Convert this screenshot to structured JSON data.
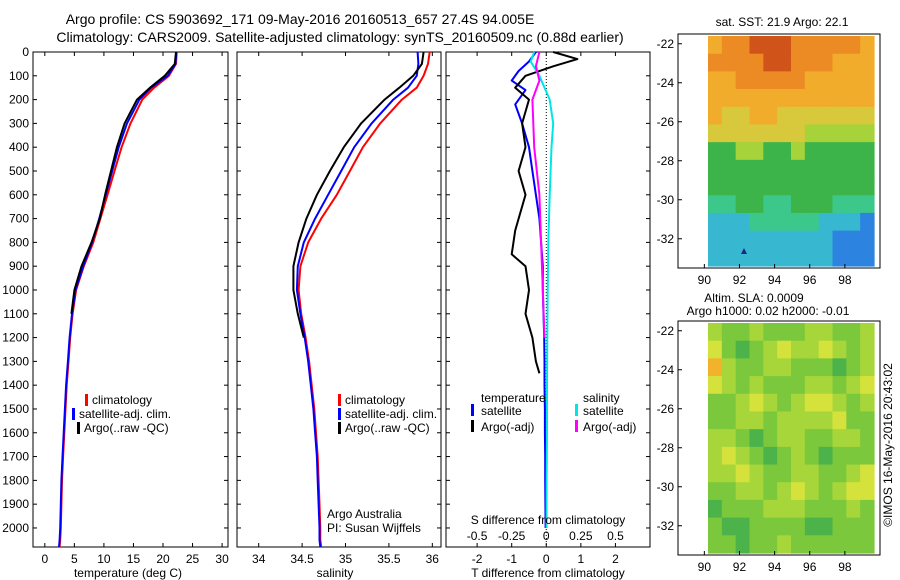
{
  "header": {
    "title_line1": "Argo profile: CS 5903692_171 09-May-2016 20160513_657 27.4S 94.005E",
    "title_line2": "Climatology: CARS2009. Satellite-adjusted climatology: synTS_20160509.nc (0.88d earlier)"
  },
  "colors": {
    "climatology": "#ff0000",
    "satellite": "#0000ff",
    "argo": "#000000",
    "salinity_satellite": "#00e6e6",
    "salinity_argo": "#ff00ff"
  },
  "chart_data": [
    {
      "id": "temperature",
      "type": "line",
      "xlabel": "temperature (deg C)",
      "ylabel": "",
      "xlim": [
        -2,
        31
      ],
      "ylim": [
        2080,
        0
      ],
      "x_ticks": [
        0,
        5,
        10,
        15,
        20,
        25,
        30
      ],
      "y_ticks": [
        0,
        100,
        200,
        300,
        400,
        500,
        600,
        700,
        800,
        900,
        1000,
        1100,
        1200,
        1300,
        1400,
        1500,
        1600,
        1700,
        1800,
        1900,
        2000
      ],
      "legend": [
        "climatology",
        "satellite-adj. clim.",
        "Argo(..raw -QC)"
      ],
      "series": [
        {
          "name": "climatology",
          "color": "#ff0000",
          "x": [
            22.3,
            22.2,
            21.0,
            18.5,
            16.5,
            14.5,
            13.0,
            11.8,
            10.6,
            9.4,
            8.2,
            6.6,
            5.3,
            4.7,
            4.3,
            4.0,
            3.7,
            3.5,
            3.3,
            3.1,
            2.9,
            2.8,
            2.7,
            2.6,
            2.5
          ],
          "y": [
            0,
            50,
            100,
            150,
            200,
            300,
            400,
            500,
            600,
            700,
            800,
            900,
            1000,
            1100,
            1200,
            1300,
            1400,
            1500,
            1600,
            1700,
            1800,
            1900,
            2000,
            2050,
            2080
          ]
        },
        {
          "name": "satellite-adj. clim.",
          "color": "#0000ff",
          "x": [
            22.3,
            22.1,
            20.8,
            18.0,
            16.0,
            13.9,
            12.5,
            11.4,
            10.3,
            9.2,
            8.0,
            6.5,
            5.2,
            4.6,
            4.2,
            3.9,
            3.6,
            3.4,
            3.2,
            3.0,
            2.8,
            2.7,
            2.6,
            2.5,
            2.4
          ],
          "y": [
            0,
            50,
            100,
            150,
            200,
            300,
            400,
            500,
            600,
            700,
            800,
            900,
            1000,
            1100,
            1200,
            1300,
            1400,
            1500,
            1600,
            1700,
            1800,
            1900,
            2000,
            2050,
            2080
          ]
        },
        {
          "name": "Argo(..raw -QC)",
          "color": "#000000",
          "x": [
            22.2,
            22.0,
            20.3,
            17.8,
            15.6,
            13.5,
            12.2,
            11.2,
            10.2,
            9.3,
            7.9,
            6.2,
            5.0,
            4.5
          ],
          "y": [
            0,
            50,
            100,
            150,
            200,
            300,
            400,
            500,
            600,
            700,
            800,
            900,
            1000,
            1100
          ]
        }
      ]
    },
    {
      "id": "salinity",
      "type": "line",
      "xlabel": "salinity",
      "ylabel": "",
      "xlim": [
        33.75,
        36.1
      ],
      "ylim": [
        2080,
        0
      ],
      "x_ticks": [
        34,
        34.5,
        35,
        35.5,
        36
      ],
      "x_tick_labels": [
        "34",
        "34.5",
        "35",
        "35.5",
        "36"
      ],
      "legend": [
        "climatology",
        "satellite-adj. clim.",
        "Argo(..raw -QC)"
      ],
      "annotation_line1": "Argo Australia",
      "annotation_line2": "PI: Susan Wijffels",
      "series": [
        {
          "name": "climatology",
          "color": "#ff0000",
          "x": [
            35.97,
            35.95,
            35.9,
            35.82,
            35.65,
            35.4,
            35.2,
            35.05,
            34.9,
            34.72,
            34.57,
            34.48,
            34.46,
            34.49,
            34.54,
            34.58,
            34.61,
            34.64,
            34.66,
            34.68,
            34.69,
            34.7,
            34.71,
            34.71,
            34.72
          ],
          "y": [
            0,
            50,
            100,
            150,
            200,
            300,
            400,
            500,
            600,
            700,
            800,
            900,
            1000,
            1100,
            1200,
            1300,
            1400,
            1500,
            1600,
            1700,
            1800,
            1900,
            2000,
            2050,
            2080
          ]
        },
        {
          "name": "satellite-adj. clim.",
          "color": "#0000ff",
          "x": [
            35.83,
            35.84,
            35.82,
            35.72,
            35.55,
            35.3,
            35.1,
            34.95,
            34.8,
            34.65,
            34.52,
            34.45,
            34.44,
            34.48,
            34.53,
            34.57,
            34.6,
            34.63,
            34.65,
            34.67,
            34.68,
            34.69,
            34.7,
            34.7,
            34.71
          ],
          "y": [
            0,
            50,
            100,
            150,
            200,
            300,
            400,
            500,
            600,
            700,
            800,
            900,
            1000,
            1100,
            1200,
            1300,
            1400,
            1500,
            1600,
            1700,
            1800,
            1900,
            2000,
            2050,
            2080
          ]
        },
        {
          "name": "Argo(..raw -QC)",
          "color": "#000000",
          "x": [
            35.9,
            35.88,
            35.78,
            35.62,
            35.45,
            35.18,
            34.98,
            34.82,
            34.67,
            34.55,
            34.46,
            34.4,
            34.4,
            34.45,
            34.52
          ],
          "y": [
            0,
            50,
            100,
            150,
            200,
            300,
            400,
            500,
            600,
            700,
            800,
            900,
            1000,
            1100,
            1200
          ]
        }
      ]
    },
    {
      "id": "difference",
      "type": "line",
      "xlabel": "T difference from climatology",
      "xlabel_top": "S difference from climatology",
      "xlim": [
        -2.9,
        3.0
      ],
      "ylim": [
        2080,
        0
      ],
      "x_ticks": [
        -2,
        -1,
        0,
        1,
        2
      ],
      "s_tick_labels": [
        "-0.5",
        "-0.25",
        "0",
        "0.25",
        "0.5"
      ],
      "legend_title_temperature": "temperature",
      "legend_title_salinity": "salinity",
      "legend_temperature": [
        "satellite",
        "Argo(-adj)"
      ],
      "legend_salinity": [
        "satellite",
        "Argo(-adj)"
      ],
      "series": [
        {
          "name": "temperature satellite",
          "color": "#0000ff",
          "x": [
            -0.3,
            -0.5,
            -0.8,
            -1.0,
            -0.6,
            -0.9,
            -0.7,
            -0.5,
            -0.4,
            -0.3,
            -0.2,
            -0.15,
            -0.1,
            -0.1,
            -0.08,
            -0.06,
            -0.05,
            -0.05,
            -0.04,
            -0.04,
            -0.03,
            -0.03,
            -0.02
          ],
          "y": [
            0,
            40,
            80,
            120,
            160,
            220,
            300,
            400,
            500,
            600,
            700,
            800,
            900,
            1000,
            1100,
            1200,
            1300,
            1400,
            1500,
            1600,
            1700,
            1800,
            2000
          ]
        },
        {
          "name": "temperature Argo(-adj)",
          "color": "#000000",
          "x": [
            0.2,
            0.9,
            0.2,
            -0.6,
            -0.9,
            -0.5,
            -0.7,
            -0.6,
            -0.8,
            -0.6,
            -0.9,
            -1.0,
            -0.6,
            -0.5,
            -0.6,
            -0.4,
            -0.3,
            -0.2
          ],
          "y": [
            0,
            30,
            60,
            100,
            150,
            200,
            300,
            400,
            500,
            600,
            750,
            850,
            900,
            1000,
            1100,
            1200,
            1300,
            1350
          ]
        },
        {
          "name": "salinity satellite",
          "color": "#00e6e6",
          "x": [
            -0.35,
            -0.45,
            -0.2,
            0.1,
            0.2,
            0.15,
            0.1,
            0.06,
            0.04,
            0.03,
            0.02,
            0.02,
            0.01,
            0.01
          ],
          "y": [
            0,
            40,
            100,
            200,
            300,
            400,
            600,
            800,
            1000,
            1200,
            1400,
            1600,
            1800,
            2000
          ]
        },
        {
          "name": "salinity Argo(-adj)",
          "color": "#ff00ff",
          "x": [
            -0.2,
            -0.3,
            -0.2,
            -0.4,
            -0.35,
            -0.2,
            -0.15,
            -0.1,
            -0.05
          ],
          "y": [
            0,
            60,
            120,
            200,
            400,
            600,
            800,
            1000,
            1200
          ]
        }
      ]
    },
    {
      "id": "sst-map",
      "type": "heatmap",
      "title": "sat. SST: 21.9  Argo: 22.1",
      "xlim": [
        88.5,
        100
      ],
      "ylim": [
        -33.5,
        -21.5
      ],
      "x_ticks": [
        90,
        92,
        94,
        96,
        98
      ],
      "y_ticks": [
        -22,
        -24,
        -26,
        -28,
        -30,
        -32
      ],
      "colors": [
        "#d0541a",
        "#ec8a24",
        "#f2ac2c",
        "#d8c93c",
        "#a6d23a",
        "#3cb449",
        "#3cc88a",
        "#38b8d0",
        "#2c84e0"
      ],
      "rows": [
        [
          2,
          1,
          1,
          0,
          0,
          0,
          1,
          1,
          1,
          1,
          1,
          2
        ],
        [
          1,
          1,
          1,
          1,
          0,
          0,
          1,
          1,
          1,
          2,
          2,
          2
        ],
        [
          2,
          2,
          1,
          1,
          1,
          1,
          1,
          2,
          2,
          2,
          2,
          2
        ],
        [
          2,
          2,
          2,
          2,
          2,
          2,
          2,
          2,
          2,
          2,
          2,
          2
        ],
        [
          2,
          3,
          3,
          2,
          2,
          3,
          3,
          3,
          3,
          3,
          3,
          3
        ],
        [
          3,
          3,
          3,
          3,
          3,
          3,
          3,
          4,
          4,
          4,
          4,
          4
        ],
        [
          5,
          5,
          4,
          4,
          5,
          5,
          4,
          5,
          5,
          5,
          5,
          5
        ],
        [
          5,
          5,
          5,
          5,
          5,
          5,
          5,
          5,
          5,
          5,
          5,
          5
        ],
        [
          5,
          5,
          5,
          5,
          5,
          5,
          5,
          5,
          5,
          5,
          5,
          5
        ],
        [
          6,
          6,
          5,
          5,
          6,
          6,
          5,
          5,
          5,
          6,
          6,
          6
        ],
        [
          7,
          7,
          7,
          6,
          6,
          6,
          6,
          6,
          7,
          7,
          7,
          8
        ],
        [
          7,
          7,
          7,
          7,
          7,
          7,
          7,
          7,
          7,
          8,
          8,
          8
        ],
        [
          7,
          7,
          7,
          7,
          7,
          7,
          7,
          7,
          7,
          8,
          8,
          8
        ]
      ]
    },
    {
      "id": "sla-map",
      "type": "heatmap",
      "title_line1": "Altim. SLA: 0.0009",
      "title_line2": "Argo h1000: 0.02  h2000: -0.01",
      "xlim": [
        88.5,
        100
      ],
      "ylim": [
        -33.5,
        -21.5
      ],
      "x_ticks": [
        90,
        92,
        94,
        96,
        98
      ],
      "y_ticks": [
        -22,
        -24,
        -26,
        -28,
        -30,
        -32
      ],
      "colors": [
        "#f2b22c",
        "#d6e23c",
        "#a6d63a",
        "#7cc83c",
        "#4cb24a"
      ],
      "rows": [
        [
          2,
          3,
          3,
          2,
          3,
          3,
          3,
          2,
          2,
          3,
          3,
          2
        ],
        [
          1,
          3,
          4,
          3,
          2,
          1,
          2,
          2,
          1,
          2,
          3,
          2
        ],
        [
          0,
          2,
          3,
          3,
          2,
          2,
          3,
          3,
          3,
          4,
          3,
          2
        ],
        [
          1,
          2,
          3,
          2,
          3,
          3,
          3,
          2,
          2,
          3,
          2,
          1
        ],
        [
          3,
          3,
          2,
          1,
          2,
          3,
          2,
          1,
          1,
          2,
          3,
          2
        ],
        [
          3,
          3,
          2,
          2,
          3,
          2,
          2,
          2,
          2,
          1,
          3,
          3
        ],
        [
          2,
          2,
          3,
          4,
          3,
          2,
          2,
          3,
          3,
          2,
          2,
          3
        ],
        [
          2,
          1,
          2,
          3,
          4,
          3,
          2,
          3,
          4,
          3,
          3,
          3
        ],
        [
          2,
          2,
          1,
          2,
          3,
          3,
          2,
          2,
          3,
          3,
          2,
          1
        ],
        [
          3,
          3,
          2,
          2,
          3,
          2,
          1,
          2,
          3,
          2,
          1,
          1
        ],
        [
          4,
          3,
          3,
          3,
          2,
          2,
          2,
          3,
          3,
          3,
          2,
          3
        ],
        [
          3,
          4,
          4,
          3,
          3,
          3,
          3,
          4,
          4,
          3,
          3,
          3
        ],
        [
          3,
          3,
          4,
          3,
          3,
          2,
          3,
          3,
          3,
          3,
          3,
          3
        ]
      ]
    }
  ],
  "footer": {
    "credit": "©IMOS 16-May-2016 20:43:02"
  }
}
